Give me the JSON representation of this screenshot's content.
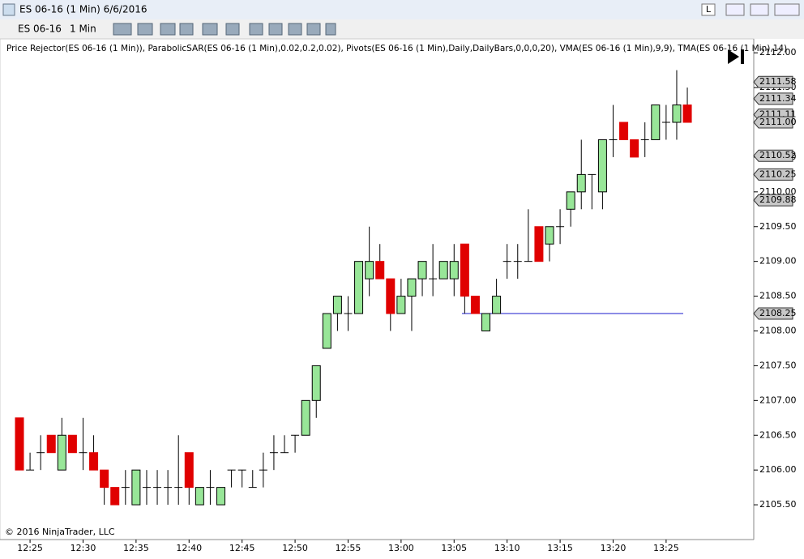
{
  "window": {
    "title": "ES 06-16 (1 Min)  6/6/2016",
    "buttons": [
      "L"
    ]
  },
  "toolbar": {
    "instrument": "ES 06-16",
    "interval": "1 Min"
  },
  "indicators_label": "Price Rejector(ES 06-16 (1 Min)), ParabolicSAR(ES 06-16 (1 Min),0.02,0.2,0.02), Pivots(ES 06-16 (1 Min),Daily,DailyBars,0,0,0,20), VMA(ES 06-16 (1 Min),9,9), TMA(ES 06-16 (1 Min),14)",
  "copyright": "© 2016 NinjaTrader, LLC",
  "chart_data": {
    "type": "candlestick",
    "categories": [
      null,
      "12:25",
      null,
      null,
      null,
      null,
      "12:30",
      null,
      null,
      null,
      null,
      "12:35",
      null,
      null,
      null,
      null,
      "12:40",
      null,
      null,
      null,
      null,
      "12:45",
      null,
      null,
      null,
      null,
      "12:50",
      null,
      null,
      null,
      null,
      "12:55",
      null,
      null,
      null,
      null,
      "13:00",
      null,
      null,
      null,
      null,
      "13:05",
      null,
      null,
      null,
      null,
      "13:10",
      null,
      null,
      null,
      null,
      "13:15",
      null,
      null,
      null,
      null,
      "13:20",
      null,
      null,
      null,
      null,
      "13:25",
      null,
      null
    ],
    "open": [
      2106.75,
      2106.0,
      2106.25,
      2106.5,
      2106.0,
      2106.5,
      2106.25,
      2106.25,
      2106.0,
      2105.75,
      2105.75,
      2105.5,
      2105.75,
      2105.75,
      2105.75,
      2105.75,
      2106.25,
      2105.5,
      2105.75,
      2105.5,
      2106.0,
      2106.0,
      2105.75,
      2106.0,
      2106.25,
      2106.25,
      2106.5,
      2106.5,
      2107.0,
      2107.75,
      2108.25,
      2108.25,
      2108.25,
      2108.75,
      2109.0,
      2108.75,
      2108.25,
      2108.5,
      2108.75,
      2108.75,
      2108.75,
      2108.75,
      2109.25,
      2108.5,
      2108.0,
      2108.25,
      2109.0,
      2109.0,
      2109.0,
      2109.5,
      2109.25,
      2109.5,
      2109.75,
      2110.0,
      2110.25,
      2110.0,
      2110.75,
      2111.0,
      2110.75,
      2110.75,
      2110.75,
      2111.0,
      2111.0,
      2111.25
    ],
    "high": [
      2106.75,
      2106.25,
      2106.5,
      2106.5,
      2106.75,
      2106.5,
      2106.75,
      2106.5,
      2106.0,
      2105.75,
      2106.0,
      2106.0,
      2106.0,
      2106.0,
      2106.0,
      2106.5,
      2106.25,
      2105.75,
      2106.0,
      2105.75,
      2106.0,
      2106.0,
      2106.0,
      2106.25,
      2106.5,
      2106.5,
      2106.5,
      2107.0,
      2107.5,
      2108.25,
      2108.5,
      2108.5,
      2109.0,
      2109.5,
      2109.25,
      2108.75,
      2108.75,
      2108.75,
      2109.0,
      2109.25,
      2109.0,
      2109.25,
      2109.25,
      2108.5,
      2108.25,
      2108.75,
      2109.25,
      2109.25,
      2109.75,
      2109.5,
      2109.5,
      2109.75,
      2110.0,
      2110.75,
      2110.25,
      2110.75,
      2111.25,
      2111.0,
      2110.75,
      2111.0,
      2111.25,
      2111.25,
      2111.75,
      2111.5
    ],
    "low": [
      2106.0,
      2106.0,
      2106.0,
      2106.25,
      2106.0,
      2106.25,
      2106.0,
      2106.0,
      2105.5,
      2105.5,
      2105.5,
      2105.5,
      2105.5,
      2105.5,
      2105.5,
      2105.5,
      2105.5,
      2105.5,
      2105.5,
      2105.5,
      2105.75,
      2105.75,
      2105.75,
      2105.75,
      2106.0,
      2106.25,
      2106.25,
      2106.5,
      2106.75,
      2107.75,
      2108.0,
      2108.0,
      2108.25,
      2108.5,
      2108.75,
      2108.0,
      2108.25,
      2108.0,
      2108.5,
      2108.5,
      2108.75,
      2108.5,
      2108.25,
      2108.25,
      2108.0,
      2108.25,
      2108.75,
      2108.75,
      2109.0,
      2109.0,
      2109.0,
      2109.25,
      2109.5,
      2109.75,
      2109.75,
      2109.75,
      2110.5,
      2110.75,
      2110.5,
      2110.5,
      2110.75,
      2110.75,
      2110.75,
      2111.0
    ],
    "close": [
      2106.0,
      2106.0,
      2106.25,
      2106.25,
      2106.5,
      2106.25,
      2106.25,
      2106.0,
      2105.75,
      2105.5,
      2105.75,
      2106.0,
      2105.75,
      2105.75,
      2105.75,
      2105.75,
      2105.75,
      2105.75,
      2105.75,
      2105.75,
      2106.0,
      2106.0,
      2105.75,
      2106.0,
      2106.25,
      2106.25,
      2106.5,
      2107.0,
      2107.5,
      2108.25,
      2108.5,
      2108.25,
      2109.0,
      2109.0,
      2108.75,
      2108.25,
      2108.5,
      2108.75,
      2109.0,
      2108.75,
      2109.0,
      2109.0,
      2108.5,
      2108.25,
      2108.25,
      2108.5,
      2109.0,
      2109.0,
      2109.0,
      2109.0,
      2109.5,
      2109.5,
      2110.0,
      2110.25,
      2110.25,
      2110.75,
      2110.75,
      2110.75,
      2110.5,
      2110.75,
      2111.25,
      2111.0,
      2111.25,
      2111.0
    ],
    "up_color": "#98e698",
    "down_color": "#e00000",
    "ylim": [
      2105.0,
      2112.2
    ],
    "yticks": [
      {
        "value": 2105.5,
        "label": "2105.50"
      },
      {
        "value": 2106,
        "label": "2106.00"
      },
      {
        "value": 2106.5,
        "label": "2106.50"
      },
      {
        "value": 2107,
        "label": "2107.00"
      },
      {
        "value": 2107.5,
        "label": "2107.50"
      },
      {
        "value": 2108,
        "label": "2108.00"
      },
      {
        "value": 2108.5,
        "label": "2108.50"
      },
      {
        "value": 2109,
        "label": "2109.00"
      },
      {
        "value": 2109.5,
        "label": "2109.50"
      },
      {
        "value": 2110,
        "label": "2110.00"
      },
      {
        "value": 2110.5,
        "label": "2110.50"
      },
      {
        "value": 2111,
        "label": "2111.00"
      },
      {
        "value": 2111.5,
        "label": "2111.50"
      },
      {
        "value": 2112,
        "label": "2112.00"
      }
    ],
    "price_tags": {
      "values": [
        2111.58,
        2111.34,
        2111.11,
        2111.0,
        2110.52,
        2110.25,
        2109.88,
        2108.25
      ],
      "value_labels": [
        "2111.58",
        "2111.34",
        "2111.11",
        "2111.00",
        "2110.52",
        "2110.25",
        "2109.88",
        "2108.25"
      ]
    }
  }
}
